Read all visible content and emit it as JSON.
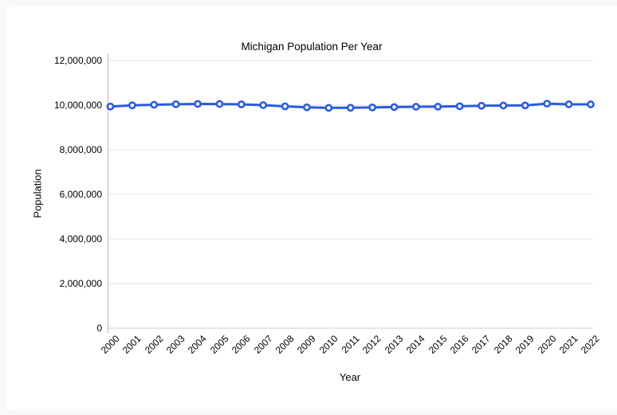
{
  "page": {
    "background_color": "#f8f9fa",
    "card_background_color": "#ffffff"
  },
  "chart_data": {
    "type": "line",
    "title": "Michigan Population Per Year",
    "xlabel": "Year",
    "ylabel": "Population",
    "categories": [
      2000,
      2001,
      2002,
      2003,
      2004,
      2005,
      2006,
      2007,
      2008,
      2009,
      2010,
      2011,
      2012,
      2013,
      2014,
      2015,
      2016,
      2017,
      2018,
      2019,
      2020,
      2021,
      2022
    ],
    "series": [
      {
        "name": "Population",
        "values": [
          9938444,
          9991120,
          10015710,
          10041152,
          10055315,
          10051137,
          10036081,
          10001284,
          9946889,
          9901591,
          9877510,
          9882412,
          9897145,
          9913065,
          9929848,
          9931715,
          9950745,
          9973114,
          9984072,
          9986857,
          10067664,
          10037261,
          10034113
        ]
      }
    ],
    "ylim": [
      0,
      12000000
    ],
    "y_ticks": [
      0,
      2000000,
      4000000,
      6000000,
      8000000,
      10000000,
      12000000
    ],
    "y_tick_labels": [
      "0",
      "2,000,000",
      "4,000,000",
      "6,000,000",
      "8,000,000",
      "10,000,000",
      "12,000,000"
    ],
    "grid": "horizontal",
    "legend": "none",
    "style": {
      "line_color": "#2a5ce0",
      "marker_fill": "#ffffff",
      "marker_stroke": "#2a5ce0",
      "grid_color": "#e6e6e6",
      "axis_line_color": "#b7b7b7",
      "baseline_color": "#cccccc",
      "text_color": "#000000"
    }
  }
}
